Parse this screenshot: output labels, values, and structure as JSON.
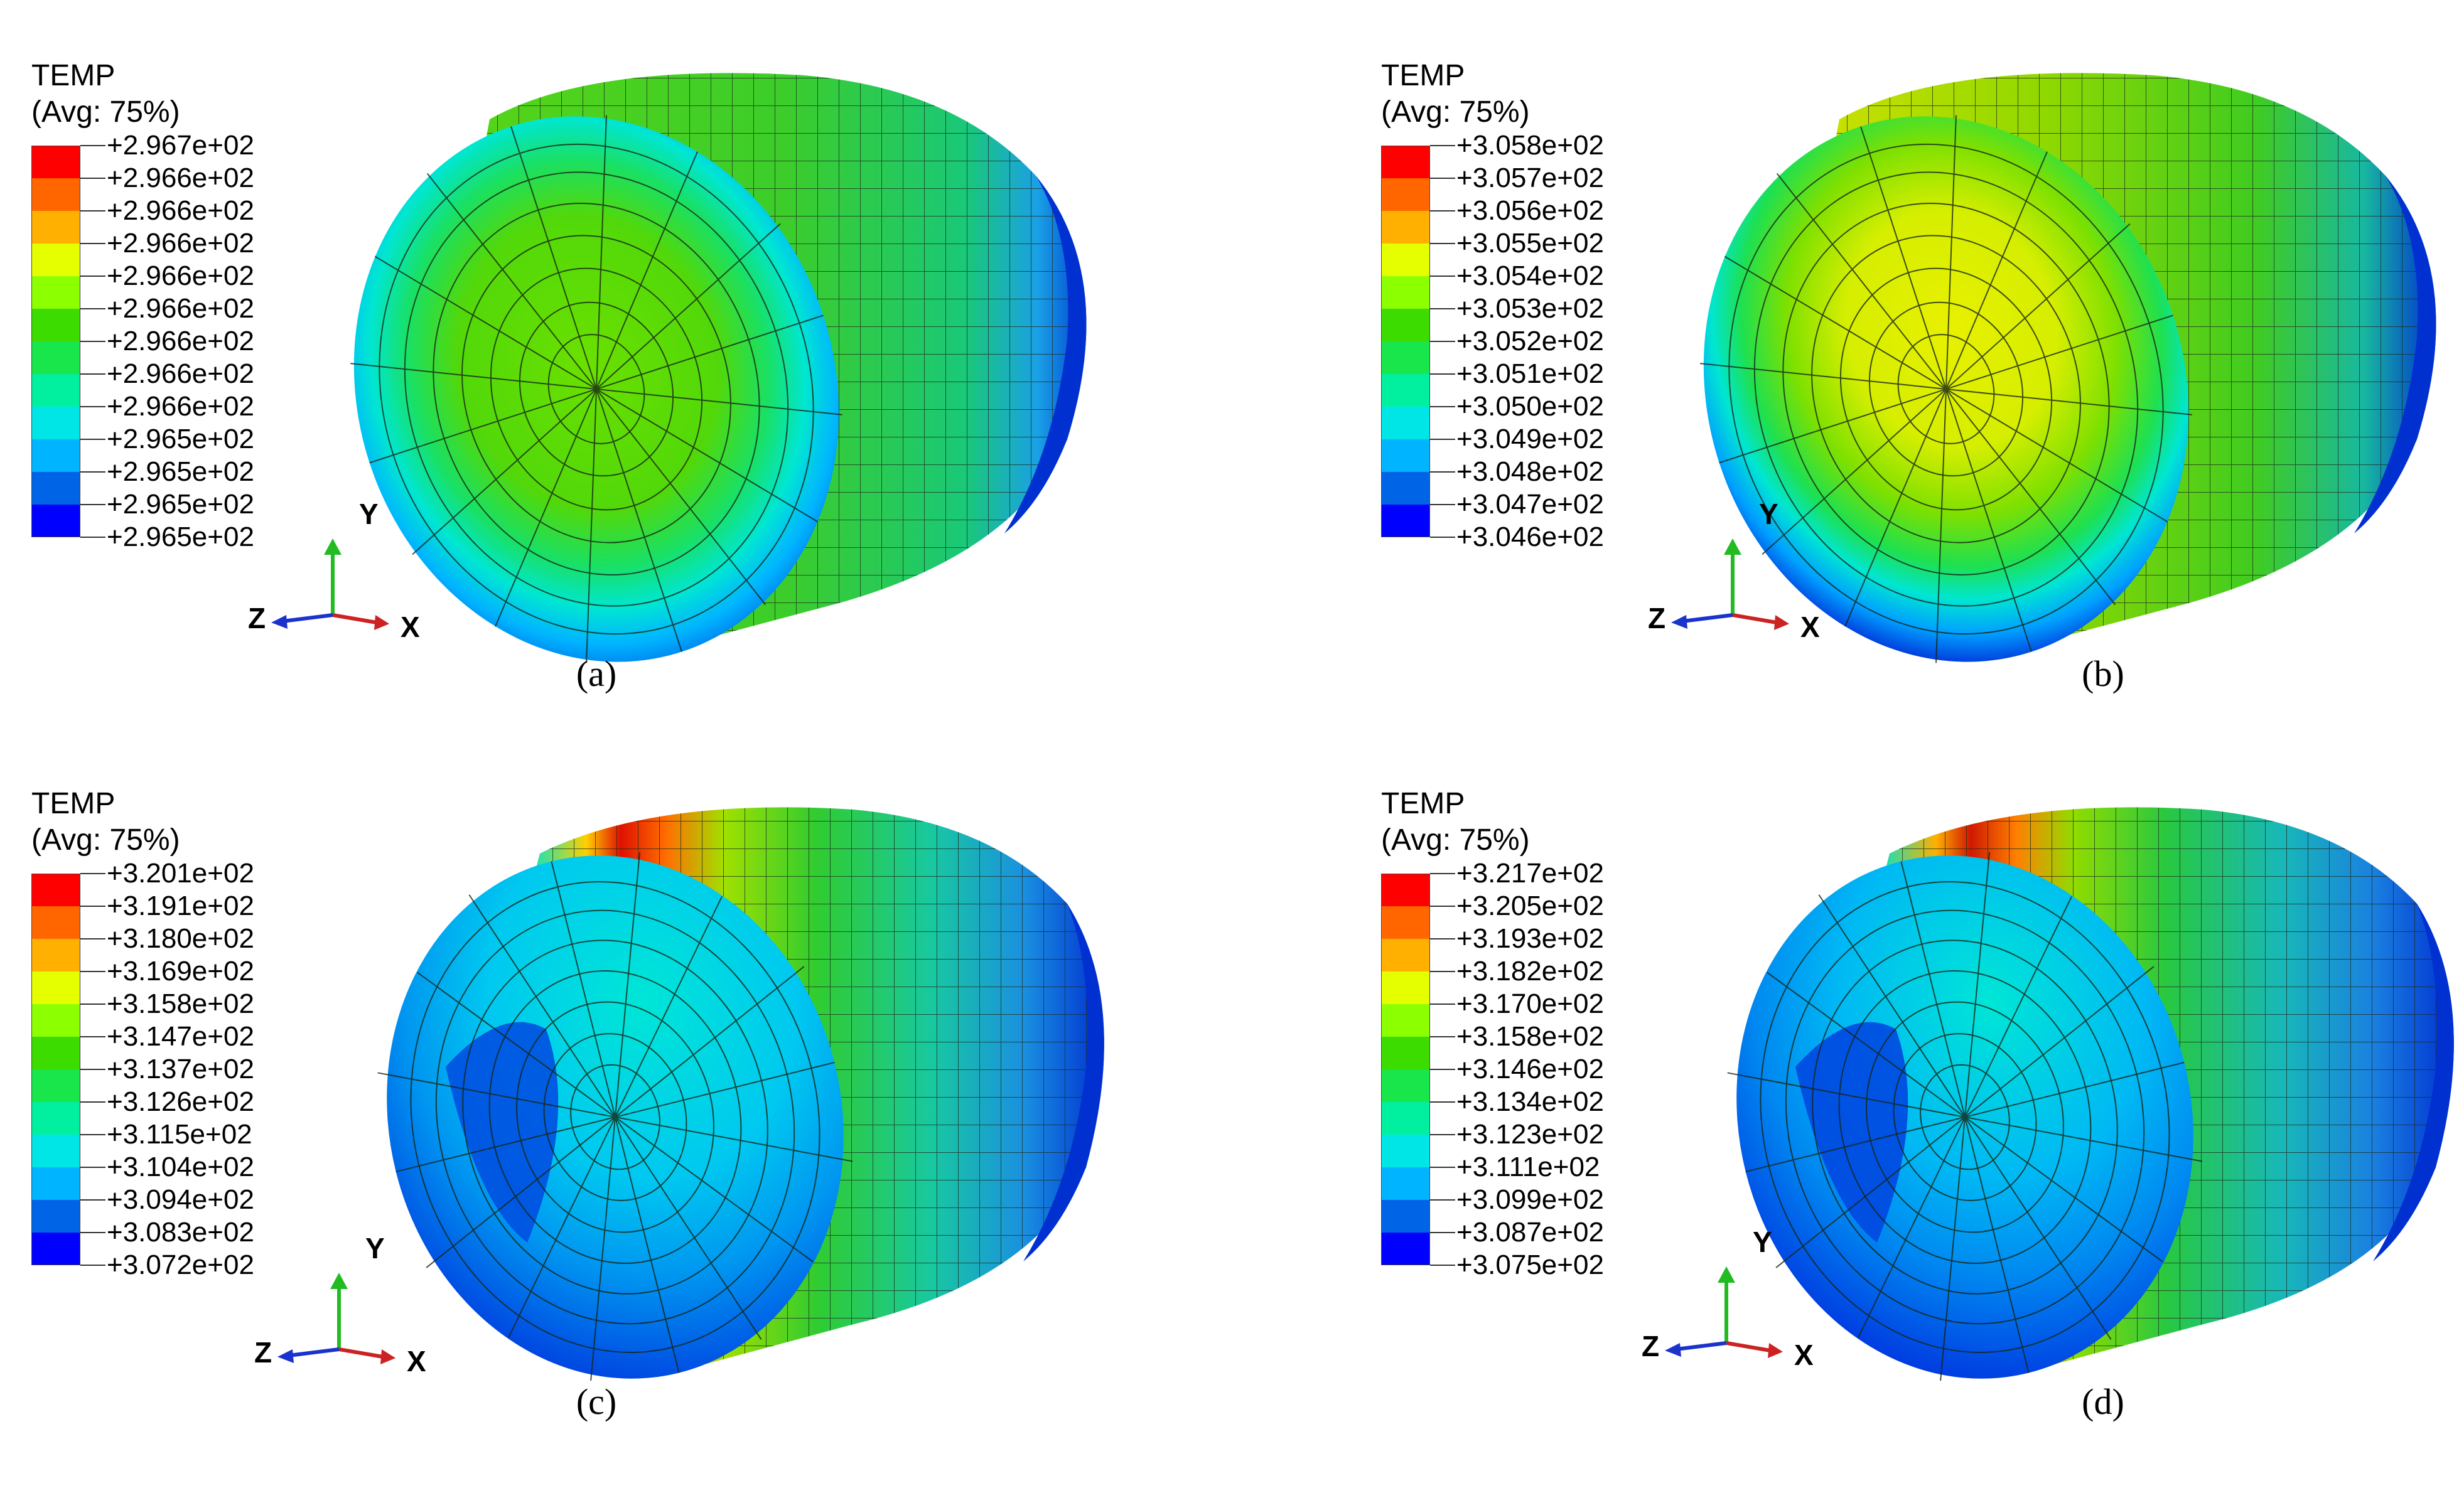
{
  "legend_colors": [
    "#ff0000",
    "#ff6600",
    "#ffb000",
    "#e6ff00",
    "#8cff00",
    "#3cdc00",
    "#19e64b",
    "#00f0a0",
    "#00e6e6",
    "#00b4ff",
    "#0064e6",
    "#0000ff"
  ],
  "panels": [
    {
      "legend_title": "TEMP",
      "legend_subtitle": "(Avg: 75%)",
      "legend_values": [
        "+2.967e+02",
        "+2.966e+02",
        "+2.966e+02",
        "+2.966e+02",
        "+2.966e+02",
        "+2.966e+02",
        "+2.966e+02",
        "+2.966e+02",
        "+2.966e+02",
        "+2.965e+02",
        "+2.965e+02",
        "+2.965e+02",
        "+2.965e+02"
      ],
      "axis_y": "Y",
      "axis_z": "Z",
      "axis_x": "X",
      "caption": "(a)"
    },
    {
      "legend_title": "TEMP",
      "legend_subtitle": "(Avg: 75%)",
      "legend_values": [
        "+3.058e+02",
        "+3.057e+02",
        "+3.056e+02",
        "+3.055e+02",
        "+3.054e+02",
        "+3.053e+02",
        "+3.052e+02",
        "+3.051e+02",
        "+3.050e+02",
        "+3.049e+02",
        "+3.048e+02",
        "+3.047e+02",
        "+3.046e+02"
      ],
      "axis_y": "Y",
      "axis_z": "Z",
      "axis_x": "X",
      "caption": "(b)"
    },
    {
      "legend_title": "TEMP",
      "legend_subtitle": "(Avg: 75%)",
      "legend_values": [
        "+3.201e+02",
        "+3.191e+02",
        "+3.180e+02",
        "+3.169e+02",
        "+3.158e+02",
        "+3.147e+02",
        "+3.137e+02",
        "+3.126e+02",
        "+3.115e+02",
        "+3.104e+02",
        "+3.094e+02",
        "+3.083e+02",
        "+3.072e+02"
      ],
      "axis_y": "Y",
      "axis_z": "Z",
      "axis_x": "X",
      "caption": "(c)"
    },
    {
      "legend_title": "TEMP",
      "legend_subtitle": "(Avg: 75%)",
      "legend_values": [
        "+3.217e+02",
        "+3.205e+02",
        "+3.193e+02",
        "+3.182e+02",
        "+3.170e+02",
        "+3.158e+02",
        "+3.146e+02",
        "+3.134e+02",
        "+3.123e+02",
        "+3.111e+02",
        "+3.099e+02",
        "+3.087e+02",
        "+3.075e+02"
      ],
      "axis_y": "Y",
      "axis_z": "Z",
      "axis_x": "X",
      "caption": "(d)"
    }
  ]
}
